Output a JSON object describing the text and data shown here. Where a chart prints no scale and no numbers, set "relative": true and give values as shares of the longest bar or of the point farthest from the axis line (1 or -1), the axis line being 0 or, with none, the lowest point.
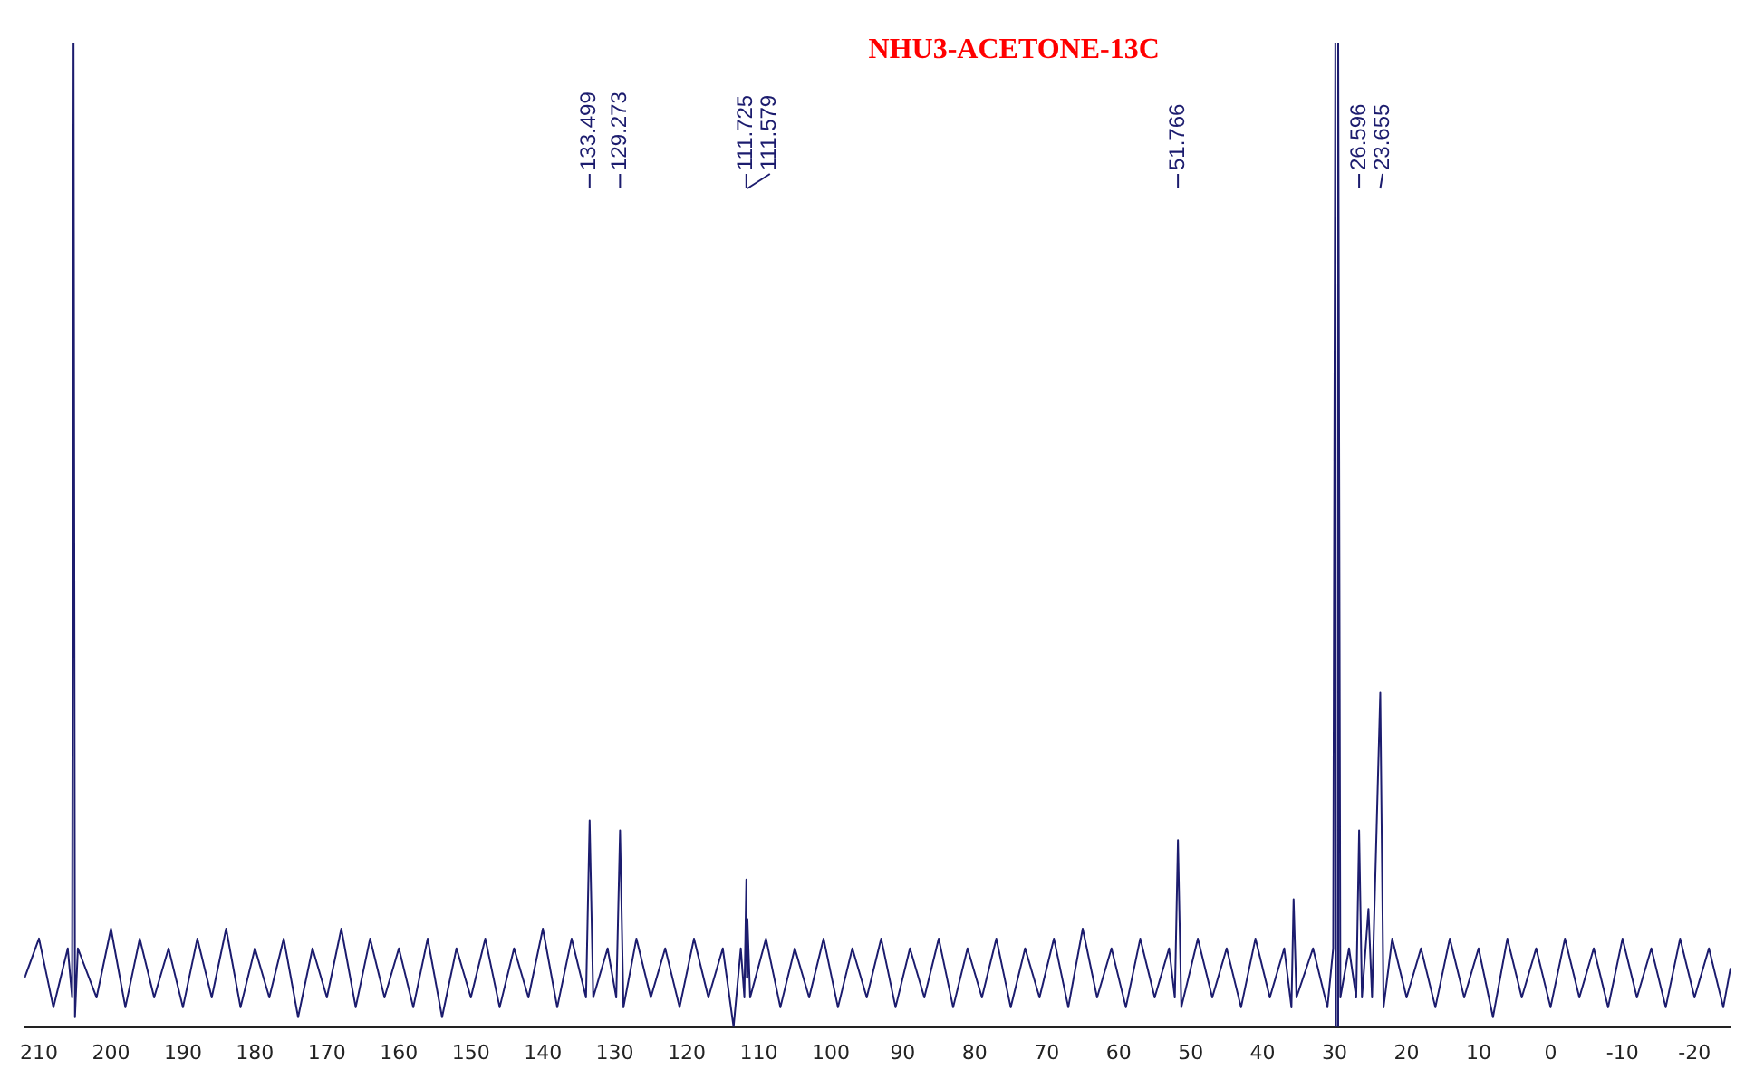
{
  "chart_data": {
    "type": "line",
    "title": "NHU3-ACETONE-13C",
    "relative": true,
    "xlim": [
      212,
      -25
    ],
    "xticks": [
      210,
      200,
      190,
      180,
      170,
      160,
      150,
      140,
      130,
      120,
      110,
      100,
      90,
      80,
      70,
      60,
      50,
      40,
      30,
      20,
      10,
      0,
      -10,
      -20
    ],
    "grid": false,
    "legend": false,
    "marker": "none",
    "line_style": "solid",
    "annotations": [
      {
        "text": "133.499",
        "x": 133.499
      },
      {
        "text": "129.273",
        "x": 129.273
      },
      {
        "text": "111.725",
        "x": 111.725
      },
      {
        "text": "111.579",
        "x": 111.579
      },
      {
        "text": "51.766",
        "x": 51.766
      },
      {
        "text": "26.596",
        "x": 26.596
      },
      {
        "text": "23.655",
        "x": 23.655
      }
    ],
    "series": [
      {
        "color": "#1c1c6e",
        "x": [
          212,
          210,
          208,
          206,
          205.4,
          205.2,
          205,
          204.6,
          202,
          200,
          198,
          196,
          194,
          192,
          190,
          188,
          186,
          184,
          182,
          180,
          178,
          176,
          174,
          172,
          170,
          168,
          166,
          164,
          162,
          160,
          158,
          156,
          154,
          152,
          150,
          148,
          146,
          144,
          142,
          140,
          138,
          136,
          134,
          133.499,
          133,
          131,
          129.8,
          129.273,
          128.8,
          127,
          125,
          123,
          121,
          119,
          117,
          115,
          113.5,
          112.5,
          112,
          111.725,
          111.65,
          111.579,
          111.2,
          109,
          107,
          105,
          103,
          101,
          99,
          97,
          95,
          93,
          91,
          89,
          87,
          85,
          83,
          81,
          79,
          77,
          75,
          73,
          71,
          69,
          67,
          65,
          63,
          61,
          59,
          57,
          55,
          53,
          52.2,
          51.766,
          51.3,
          49,
          47,
          45,
          43,
          41,
          39,
          37,
          36,
          35.7,
          35.3,
          33,
          31,
          30.2,
          29.9,
          29.8,
          29.6,
          29.5,
          29.2,
          28,
          27,
          26.596,
          26.2,
          25.3,
          24.8,
          23.655,
          23.2,
          22,
          20,
          18,
          16,
          14,
          12,
          10,
          8,
          6,
          4,
          2,
          0,
          -2,
          -4,
          -6,
          -8,
          -10,
          -12,
          -14,
          -16,
          -18,
          -20,
          -22,
          -24,
          -25
        ],
        "values": [
          0.05,
          0.09,
          0.02,
          0.08,
          0.03,
          1,
          0.01,
          0.08,
          0.03,
          0.1,
          0.02,
          0.09,
          0.03,
          0.08,
          0.02,
          0.09,
          0.03,
          0.1,
          0.02,
          0.08,
          0.03,
          0.09,
          0.01,
          0.08,
          0.03,
          0.1,
          0.02,
          0.09,
          0.03,
          0.08,
          0.02,
          0.09,
          0.01,
          0.08,
          0.03,
          0.09,
          0.02,
          0.08,
          0.03,
          0.1,
          0.02,
          0.09,
          0.03,
          0.21,
          0.03,
          0.08,
          0.03,
          0.2,
          0.02,
          0.09,
          0.03,
          0.08,
          0.02,
          0.09,
          0.03,
          0.08,
          0,
          0.08,
          0.03,
          0.15,
          0.05,
          0.11,
          0.03,
          0.09,
          0.02,
          0.08,
          0.03,
          0.09,
          0.02,
          0.08,
          0.03,
          0.09,
          0.02,
          0.08,
          0.03,
          0.09,
          0.02,
          0.08,
          0.03,
          0.09,
          0.02,
          0.08,
          0.03,
          0.09,
          0.02,
          0.1,
          0.03,
          0.08,
          0.02,
          0.09,
          0.03,
          0.08,
          0.03,
          0.19,
          0.02,
          0.09,
          0.03,
          0.08,
          0.02,
          0.09,
          0.03,
          0.08,
          0.02,
          0.13,
          0.03,
          0.08,
          0.02,
          0.08,
          1,
          0,
          0,
          1,
          0.03,
          0.08,
          0.03,
          0.2,
          0.03,
          0.12,
          0.03,
          0.34,
          0.02,
          0.09,
          0.03,
          0.08,
          0.02,
          0.09,
          0.03,
          0.08,
          0.01,
          0.09,
          0.03,
          0.08,
          0.02,
          0.09,
          0.03,
          0.08,
          0.02,
          0.09,
          0.03,
          0.08,
          0.02,
          0.09,
          0.03,
          0.08,
          0.02,
          0.06
        ]
      }
    ]
  }
}
